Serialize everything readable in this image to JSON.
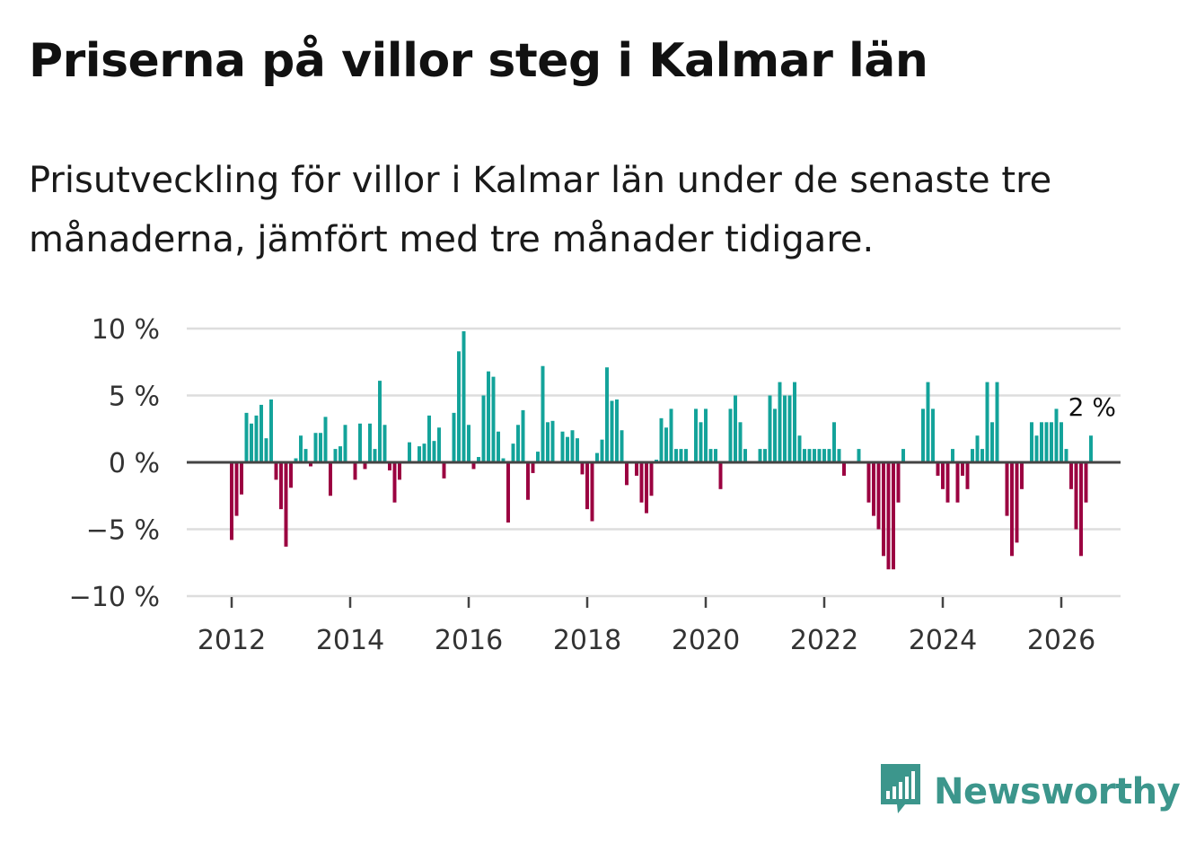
{
  "title": "Priserna på villor steg i Kalmar län",
  "subtitle": "Prisutveckling för villor i Kalmar län under de senaste tre månaderna, jämfört med tre månader tidigare.",
  "brand": {
    "name": "Newsworthy",
    "color": "#3c968c",
    "icon": "newsworthy-logo-icon"
  },
  "colors": {
    "positive": "#13a39a",
    "negative": "#9b0040",
    "zero_line": "#444444",
    "grid": "#dddddd"
  },
  "chart_data": {
    "type": "bar",
    "title": "Priserna på villor steg i Kalmar län",
    "xlabel": "",
    "ylabel": "",
    "ylim": [
      -10,
      10
    ],
    "yticks": [
      {
        "value": 10,
        "label": "10 %"
      },
      {
        "value": 5,
        "label": "5 %"
      },
      {
        "value": 0,
        "label": "0 %"
      },
      {
        "value": -5,
        "label": "−5 %"
      },
      {
        "value": -10,
        "label": "−10 %"
      }
    ],
    "xticks": [
      {
        "value": 2012,
        "label": "2012"
      },
      {
        "value": 2014,
        "label": "2014"
      },
      {
        "value": 2016,
        "label": "2016"
      },
      {
        "value": 2018,
        "label": "2018"
      },
      {
        "value": 2020,
        "label": "2020"
      },
      {
        "value": 2022,
        "label": "2022"
      },
      {
        "value": 2024,
        "label": "2024"
      },
      {
        "value": 2026,
        "label": "2026"
      }
    ],
    "xlim": [
      2010.75,
      2026.92
    ],
    "start": "2012-01",
    "frequency": "monthly",
    "values": [
      -5.8,
      -4.0,
      -2.4,
      3.7,
      2.9,
      3.5,
      4.3,
      1.8,
      4.7,
      -1.3,
      -3.5,
      -6.3,
      -1.9,
      0.3,
      2.0,
      1.0,
      -0.3,
      2.2,
      2.2,
      3.4,
      -2.5,
      1.0,
      1.2,
      2.8,
      0.0,
      -1.3,
      2.9,
      -0.5,
      2.9,
      1.0,
      6.1,
      2.8,
      -0.6,
      -3.0,
      -1.3,
      0.0,
      1.5,
      0.0,
      1.2,
      1.4,
      3.5,
      1.6,
      2.6,
      -1.2,
      0.0,
      3.7,
      8.3,
      9.8,
      2.8,
      -0.5,
      0.4,
      5.0,
      6.8,
      6.4,
      2.3,
      0.3,
      -4.5,
      1.4,
      2.8,
      3.9,
      -2.8,
      -0.8,
      0.8,
      7.2,
      3.0,
      3.1,
      0.0,
      2.3,
      1.9,
      2.4,
      1.8,
      -0.9,
      -3.5,
      -4.4,
      0.7,
      1.7,
      7.1,
      4.6,
      4.7,
      2.4,
      -1.7,
      0.0,
      -1.0,
      -3.0,
      -3.8,
      -2.5,
      0.2,
      3.3,
      2.6,
      4.0,
      1.0,
      1.0,
      1.0,
      0.0,
      4.0,
      3.0,
      4.0,
      1.0,
      1.0,
      -2.0,
      0.0,
      4.0,
      5.0,
      3.0,
      1.0,
      0.0,
      0.0,
      1.0,
      1.0,
      5.0,
      4.0,
      6.0,
      5.0,
      5.0,
      6.0,
      2.0,
      1.0,
      1.0,
      1.0,
      1.0,
      1.0,
      1.0,
      3.0,
      1.0,
      -1.0,
      0.0,
      0.0,
      1.0,
      0.0,
      -3.0,
      -4.0,
      -5.0,
      -7.0,
      -8.0,
      -8.0,
      -3.0,
      1.0,
      0.0,
      0.0,
      0.0,
      4.0,
      6.0,
      4.0,
      -1.0,
      -2.0,
      -3.0,
      1.0,
      -3.0,
      -1.0,
      -2.0,
      1.0,
      2.0,
      1.0,
      6.0,
      3.0,
      6.0,
      0.0,
      -4.0,
      -7.0,
      -6.0,
      -2.0,
      0.0,
      3.0,
      2.0,
      3.0,
      3.0,
      3.0,
      4.0,
      3.0,
      1.0,
      -2.0,
      -5.0,
      -7.0,
      -3.0,
      2.0
    ],
    "last_value_label": "2 %"
  }
}
